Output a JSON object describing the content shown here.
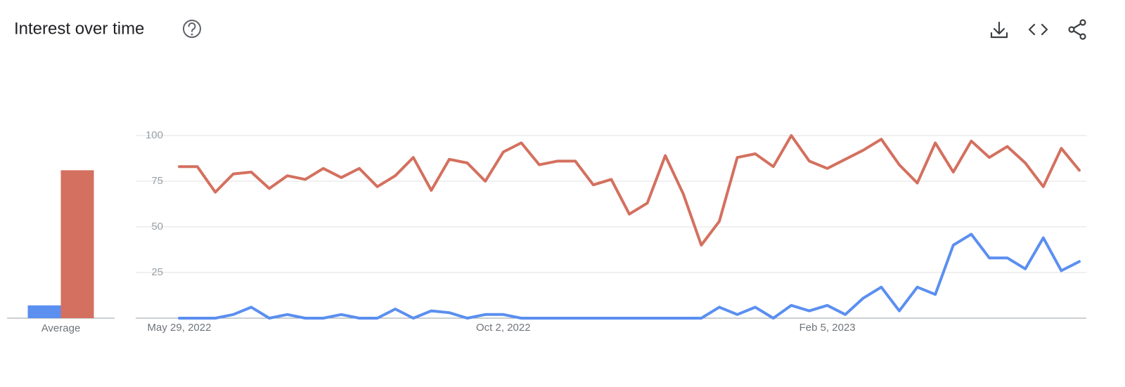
{
  "header": {
    "title": "Interest over time"
  },
  "chart_data": [
    {
      "type": "bar",
      "categories": [
        "Average"
      ],
      "ylim": [
        0,
        100
      ],
      "series": [
        {
          "color": "#5b8ff0",
          "values": [
            7
          ]
        },
        {
          "color": "#d4705f",
          "values": [
            81
          ]
        }
      ]
    },
    {
      "type": "line",
      "categories": [
        "May 29, 2022",
        null,
        null,
        null,
        null,
        null,
        null,
        null,
        null,
        null,
        null,
        null,
        null,
        null,
        null,
        null,
        null,
        null,
        "Oct 2, 2022",
        null,
        null,
        null,
        null,
        null,
        null,
        null,
        null,
        null,
        null,
        null,
        null,
        null,
        null,
        null,
        null,
        null,
        "Feb 5, 2023",
        null,
        null,
        null,
        null,
        null,
        null,
        null,
        null,
        null,
        null,
        null,
        null,
        null,
        null
      ],
      "ylim": [
        0,
        100
      ],
      "yticks": [
        25,
        50,
        75,
        100
      ],
      "grid": true,
      "series": [
        {
          "color": "#5b8ff0",
          "values": [
            0,
            0,
            0,
            2,
            6,
            0,
            2,
            0,
            0,
            2,
            0,
            0,
            5,
            0,
            4,
            3,
            0,
            2,
            2,
            0,
            0,
            0,
            0,
            0,
            0,
            0,
            0,
            0,
            0,
            0,
            6,
            2,
            6,
            0,
            7,
            4,
            7,
            2,
            11,
            17,
            4,
            17,
            13,
            40,
            46,
            33,
            33,
            27,
            44,
            26,
            31
          ]
        },
        {
          "color": "#d4705f",
          "values": [
            83,
            83,
            69,
            79,
            80,
            71,
            78,
            76,
            82,
            77,
            82,
            72,
            78,
            88,
            70,
            87,
            85,
            75,
            91,
            96,
            84,
            86,
            86,
            73,
            76,
            57,
            63,
            89,
            68,
            40,
            53,
            88,
            90,
            83,
            100,
            86,
            82,
            87,
            92,
            98,
            84,
            74,
            96,
            80,
            97,
            88,
            94,
            85,
            72,
            93,
            81
          ]
        }
      ]
    }
  ]
}
